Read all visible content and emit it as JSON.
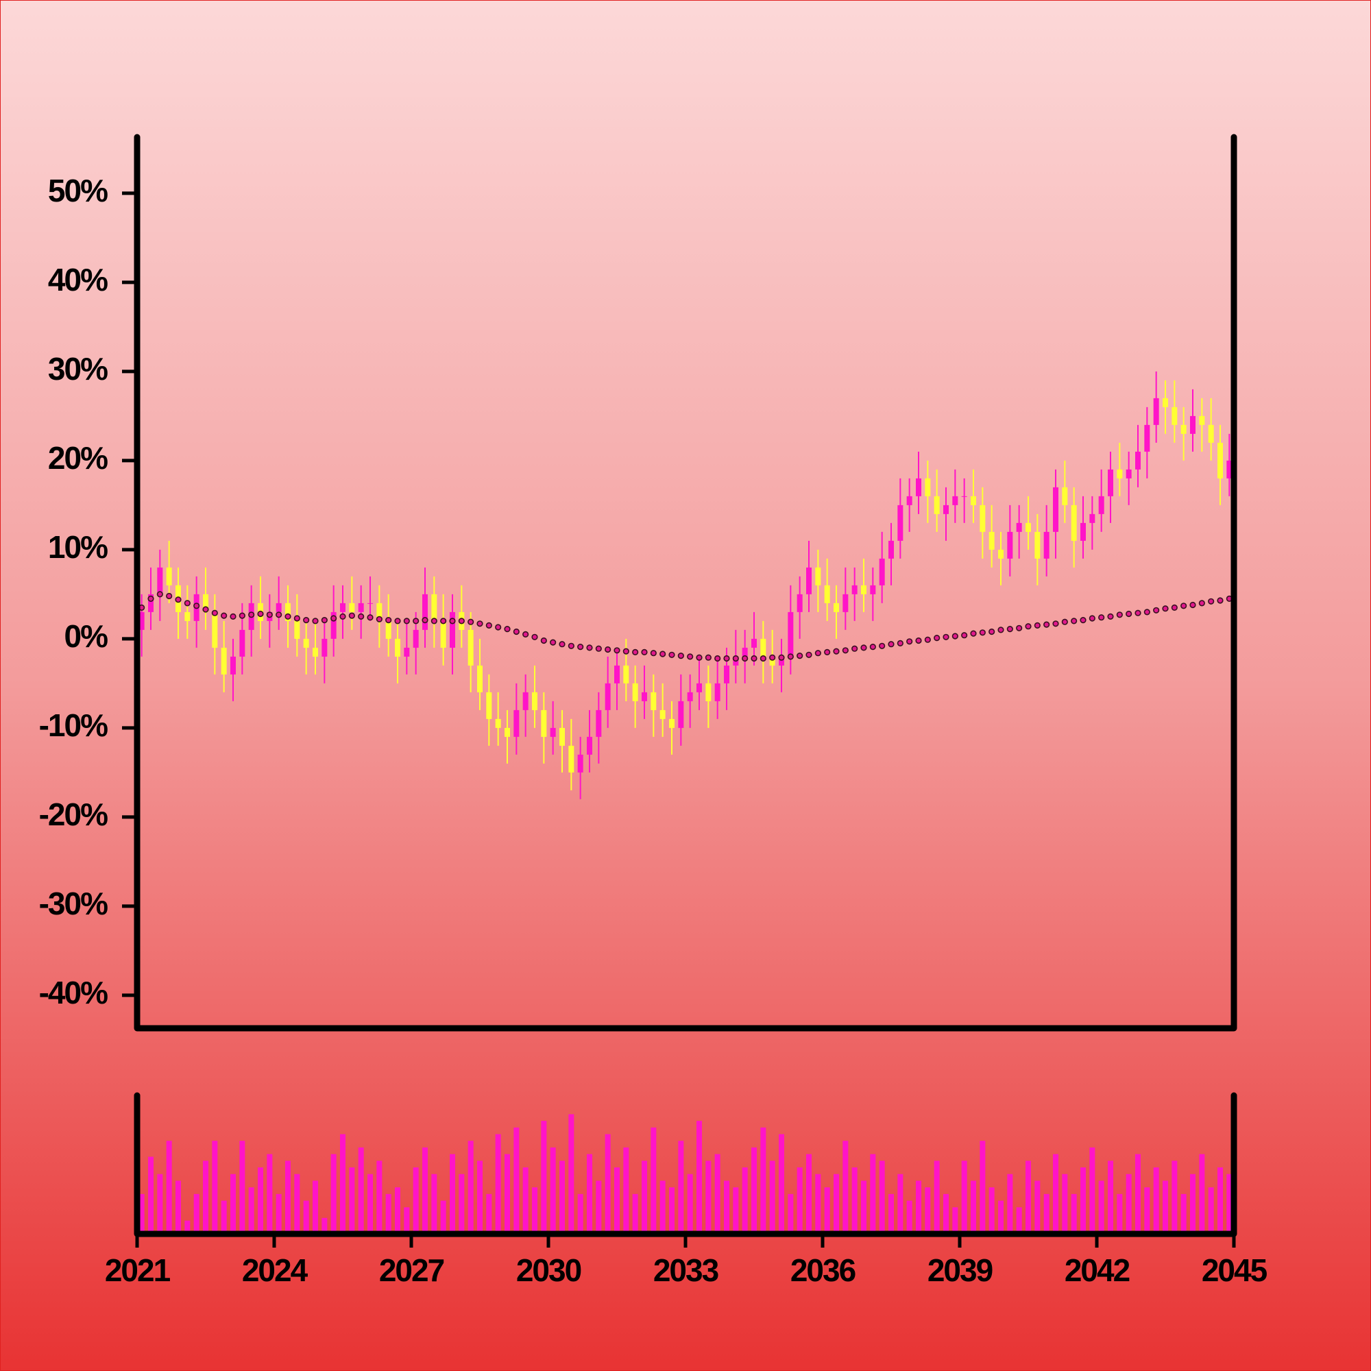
{
  "chart_data": {
    "type": "candlestick",
    "x": [
      2021.1,
      2021.3,
      2021.5,
      2021.7,
      2021.9,
      2022.1,
      2022.3,
      2022.5,
      2022.7,
      2022.9,
      2023.1,
      2023.3,
      2023.5,
      2023.7,
      2023.9,
      2024.1,
      2024.3,
      2024.5,
      2024.7,
      2024.9,
      2025.1,
      2025.3,
      2025.5,
      2025.7,
      2025.9,
      2026.1,
      2026.3,
      2026.5,
      2026.7,
      2026.9,
      2027.1,
      2027.3,
      2027.5,
      2027.7,
      2027.9,
      2028.1,
      2028.3,
      2028.5,
      2028.7,
      2028.9,
      2029.1,
      2029.3,
      2029.5,
      2029.7,
      2029.9,
      2030.1,
      2030.3,
      2030.5,
      2030.7,
      2030.9,
      2031.1,
      2031.3,
      2031.5,
      2031.7,
      2031.9,
      2032.1,
      2032.3,
      2032.5,
      2032.7,
      2032.9,
      2033.1,
      2033.3,
      2033.5,
      2033.7,
      2033.9,
      2034.1,
      2034.3,
      2034.5,
      2034.7,
      2034.9,
      2035.1,
      2035.3,
      2035.5,
      2035.7,
      2035.9,
      2036.1,
      2036.3,
      2036.5,
      2036.7,
      2036.9,
      2037.1,
      2037.3,
      2037.5,
      2037.7,
      2037.9,
      2038.1,
      2038.3,
      2038.5,
      2038.7,
      2038.9,
      2039.1,
      2039.3,
      2039.5,
      2039.7,
      2039.9,
      2040.1,
      2040.3,
      2040.5,
      2040.7,
      2040.9,
      2041.1,
      2041.3,
      2041.5,
      2041.7,
      2041.9,
      2042.1,
      2042.3,
      2042.5,
      2042.7,
      2042.9,
      2043.1,
      2043.3,
      2043.5,
      2043.7,
      2043.9,
      2044.1,
      2044.3,
      2044.5,
      2044.7,
      2044.9
    ],
    "open": [
      1,
      3,
      5,
      8,
      6,
      3,
      2,
      5,
      3,
      -1,
      -4,
      -2,
      1,
      4,
      2,
      3,
      4,
      2,
      0,
      -1,
      -2,
      0,
      3,
      4,
      3,
      4,
      4,
      2,
      0,
      -2,
      -1,
      1,
      5,
      2,
      -1,
      3,
      1,
      -3,
      -6,
      -9,
      -10,
      -11,
      -8,
      -6,
      -8,
      -11,
      -10,
      -12,
      -15,
      -13,
      -11,
      -8,
      -5,
      -3,
      -5,
      -7,
      -6,
      -8,
      -9,
      -10,
      -7,
      -6,
      -5,
      -7,
      -5,
      -3,
      -2,
      -1,
      0,
      -2,
      -3,
      -2,
      3,
      5,
      8,
      6,
      4,
      3,
      5,
      6,
      5,
      6,
      9,
      11,
      15,
      16,
      18,
      16,
      14,
      15,
      16,
      16,
      15,
      12,
      10,
      9,
      12,
      13,
      12,
      9,
      12,
      17,
      15,
      11,
      13,
      14,
      16,
      19,
      18,
      19,
      21,
      24,
      27,
      26,
      24,
      23,
      25,
      24,
      22,
      18
    ],
    "high": [
      5,
      8,
      10,
      11,
      8,
      6,
      7,
      8,
      5,
      2,
      0,
      4,
      6,
      7,
      5,
      7,
      6,
      5,
      2,
      2,
      2,
      6,
      6,
      7,
      6,
      7,
      6,
      5,
      2,
      2,
      3,
      8,
      7,
      5,
      5,
      6,
      3,
      0,
      -4,
      -6,
      -8,
      -5,
      -4,
      -3,
      -6,
      -7,
      -8,
      -9,
      -11,
      -8,
      -6,
      -2,
      -1,
      0,
      -3,
      -3,
      -4,
      -5,
      -7,
      -4,
      -4,
      -2,
      -3,
      -2,
      -1,
      1,
      1,
      3,
      2,
      1,
      0,
      6,
      7,
      11,
      10,
      9,
      6,
      8,
      8,
      9,
      8,
      12,
      13,
      18,
      18,
      21,
      20,
      19,
      17,
      19,
      18,
      19,
      17,
      15,
      12,
      15,
      15,
      16,
      14,
      15,
      19,
      20,
      17,
      16,
      16,
      19,
      21,
      22,
      21,
      24,
      26,
      30,
      29,
      29,
      26,
      28,
      27,
      27,
      24,
      23
    ],
    "low": [
      -2,
      1,
      2,
      4,
      0,
      0,
      -1,
      1,
      -4,
      -6,
      -7,
      -4,
      -2,
      0,
      -1,
      1,
      -1,
      -2,
      -4,
      -4,
      -5,
      -2,
      0,
      1,
      0,
      2,
      -1,
      -2,
      -5,
      -4,
      -4,
      -1,
      -1,
      -3,
      -4,
      -1,
      -6,
      -8,
      -12,
      -12,
      -14,
      -13,
      -11,
      -10,
      -14,
      -13,
      -15,
      -17,
      -18,
      -15,
      -14,
      -10,
      -8,
      -7,
      -10,
      -9,
      -11,
      -11,
      -13,
      -12,
      -10,
      -8,
      -10,
      -9,
      -8,
      -5,
      -5,
      -3,
      -5,
      -5,
      -6,
      -4,
      0,
      3,
      3,
      2,
      0,
      1,
      2,
      3,
      2,
      4,
      6,
      9,
      12,
      14,
      13,
      12,
      11,
      13,
      13,
      13,
      9,
      8,
      6,
      7,
      9,
      10,
      6,
      7,
      9,
      13,
      8,
      9,
      10,
      12,
      13,
      16,
      15,
      17,
      18,
      22,
      23,
      22,
      20,
      21,
      21,
      20,
      15,
      16
    ],
    "close": [
      3,
      5,
      8,
      6,
      3,
      2,
      5,
      3,
      -1,
      -4,
      -2,
      1,
      4,
      2,
      3,
      4,
      2,
      0,
      -1,
      -2,
      0,
      3,
      4,
      3,
      4,
      4,
      2,
      0,
      -2,
      -1,
      1,
      5,
      2,
      -1,
      3,
      1,
      -3,
      -6,
      -9,
      -10,
      -11,
      -8,
      -6,
      -8,
      -11,
      -10,
      -12,
      -15,
      -13,
      -11,
      -8,
      -5,
      -3,
      -5,
      -7,
      -6,
      -8,
      -9,
      -10,
      -7,
      -6,
      -5,
      -7,
      -5,
      -3,
      -2,
      -1,
      0,
      -2,
      -3,
      -2,
      3,
      5,
      8,
      6,
      4,
      3,
      5,
      6,
      5,
      6,
      9,
      11,
      15,
      16,
      18,
      16,
      14,
      15,
      16,
      16,
      15,
      12,
      10,
      9,
      12,
      13,
      12,
      9,
      12,
      17,
      15,
      11,
      13,
      14,
      16,
      19,
      18,
      19,
      21,
      24,
      27,
      26,
      24,
      23,
      25,
      24,
      22,
      18,
      20
    ],
    "up_color": "#ff14c8",
    "down_color": "#ffff33",
    "moving_average": {
      "color": "#e0188c",
      "values": [
        3.5,
        4.5,
        5.0,
        4.8,
        4.4,
        4.0,
        3.7,
        3.3,
        2.9,
        2.6,
        2.5,
        2.6,
        2.7,
        2.8,
        2.7,
        2.7,
        2.5,
        2.3,
        2.1,
        2.0,
        2.1,
        2.3,
        2.5,
        2.6,
        2.5,
        2.4,
        2.2,
        2.1,
        2.0,
        2.0,
        2.0,
        2.1,
        2.0,
        2.0,
        2.0,
        2.0,
        1.9,
        1.7,
        1.5,
        1.3,
        1.1,
        0.8,
        0.5,
        0.2,
        -0.2,
        -0.4,
        -0.6,
        -0.8,
        -0.9,
        -1.0,
        -1.1,
        -1.2,
        -1.3,
        -1.4,
        -1.5,
        -1.5,
        -1.6,
        -1.7,
        -1.8,
        -1.9,
        -2.0,
        -2.1,
        -2.1,
        -2.2,
        -2.2,
        -2.2,
        -2.2,
        -2.2,
        -2.2,
        -2.1,
        -2.1,
        -2.0,
        -1.9,
        -1.8,
        -1.6,
        -1.5,
        -1.4,
        -1.3,
        -1.1,
        -1.0,
        -0.9,
        -0.8,
        -0.6,
        -0.5,
        -0.3,
        -0.2,
        -0.1,
        0.1,
        0.2,
        0.3,
        0.4,
        0.6,
        0.7,
        0.8,
        1.0,
        1.1,
        1.2,
        1.4,
        1.5,
        1.6,
        1.7,
        1.9,
        2.0,
        2.1,
        2.3,
        2.4,
        2.5,
        2.7,
        2.8,
        2.9,
        3.0,
        3.2,
        3.4,
        3.5,
        3.7,
        3.8,
        4.0,
        4.2,
        4.3,
        4.5
      ]
    },
    "volume": {
      "color": "#ff14c8",
      "axis": "y2",
      "values": [
        30,
        58,
        45,
        70,
        40,
        10,
        30,
        55,
        70,
        25,
        45,
        70,
        35,
        50,
        60,
        30,
        55,
        45,
        25,
        40,
        12,
        60,
        75,
        50,
        65,
        45,
        55,
        30,
        35,
        20,
        50,
        65,
        45,
        25,
        60,
        45,
        70,
        55,
        30,
        75,
        60,
        80,
        50,
        35,
        85,
        65,
        55,
        90,
        30,
        60,
        40,
        75,
        50,
        65,
        30,
        55,
        80,
        40,
        35,
        70,
        45,
        85,
        55,
        60,
        40,
        35,
        50,
        65,
        80,
        55,
        75,
        30,
        50,
        60,
        45,
        35,
        45,
        70,
        50,
        40,
        60,
        55,
        30,
        45,
        25,
        40,
        35,
        55,
        30,
        20,
        55,
        40,
        70,
        35,
        25,
        45,
        20,
        55,
        40,
        30,
        60,
        45,
        30,
        50,
        65,
        40,
        55,
        30,
        45,
        60,
        35,
        50,
        40,
        55,
        30,
        45,
        60,
        35,
        50,
        45
      ]
    },
    "ylim": [
      -43.7,
      56.3
    ],
    "yticks": [
      {
        "value": -40,
        "label": "-40%"
      },
      {
        "value": -30,
        "label": "-30%"
      },
      {
        "value": -20,
        "label": "-20%"
      },
      {
        "value": -10,
        "label": "-10%"
      },
      {
        "value": 0,
        "label": "0%"
      },
      {
        "value": 10,
        "label": "10%"
      },
      {
        "value": 20,
        "label": "20%"
      },
      {
        "value": 30,
        "label": "30%"
      },
      {
        "value": 40,
        "label": "40%"
      },
      {
        "value": 50,
        "label": "50%"
      }
    ],
    "xlim": [
      2021,
      2045
    ],
    "xticks": [
      2021,
      2024,
      2027,
      2030,
      2033,
      2036,
      2039,
      2042,
      2045
    ],
    "y2lim": [
      0,
      100
    ]
  }
}
